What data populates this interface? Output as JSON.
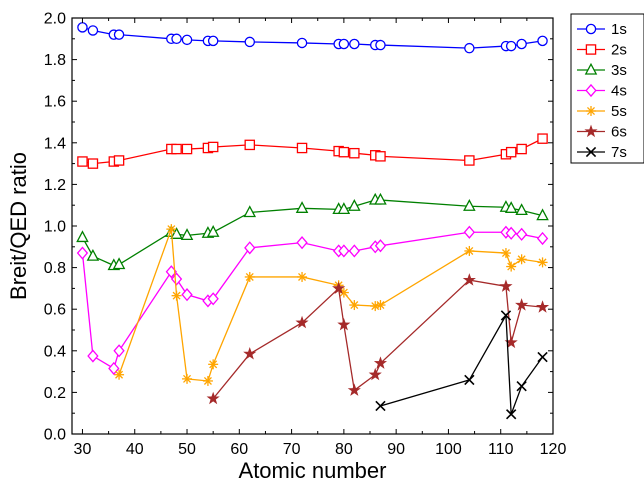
{
  "chart_data": {
    "type": "line",
    "xlabel": "Atomic number",
    "ylabel": "Breit/QED ratio",
    "xlim": [
      28,
      120
    ],
    "ylim": [
      0.0,
      2.0
    ],
    "xticks": [
      30,
      40,
      50,
      60,
      70,
      80,
      90,
      100,
      110,
      120
    ],
    "yticks": [
      "0.0",
      "0.2",
      "0.4",
      "0.6",
      "0.8",
      "1.0",
      "1.2",
      "1.4",
      "1.6",
      "1.8",
      "2.0"
    ],
    "legend_position": "outside-top-right",
    "grid": false,
    "series": [
      {
        "name": "1s",
        "color": "#0000ff",
        "marker": "circle",
        "x": [
          30,
          32,
          36,
          37,
          47,
          48,
          50,
          54,
          55,
          62,
          72,
          79,
          80,
          82,
          86,
          87,
          104,
          111,
          112,
          114,
          118
        ],
        "y": [
          1.955,
          1.94,
          1.92,
          1.92,
          1.9,
          1.9,
          1.895,
          1.89,
          1.89,
          1.885,
          1.88,
          1.875,
          1.875,
          1.875,
          1.87,
          1.87,
          1.855,
          1.865,
          1.865,
          1.875,
          1.89
        ]
      },
      {
        "name": "2s",
        "color": "#ff0000",
        "marker": "square",
        "x": [
          30,
          32,
          36,
          37,
          47,
          48,
          50,
          54,
          55,
          62,
          72,
          79,
          80,
          82,
          86,
          87,
          104,
          111,
          112,
          114,
          118
        ],
        "y": [
          1.31,
          1.3,
          1.31,
          1.315,
          1.37,
          1.37,
          1.37,
          1.375,
          1.38,
          1.39,
          1.375,
          1.36,
          1.355,
          1.35,
          1.34,
          1.335,
          1.315,
          1.345,
          1.355,
          1.37,
          1.42
        ]
      },
      {
        "name": "3s",
        "color": "#008000",
        "marker": "triangle",
        "x": [
          30,
          32,
          36,
          37,
          47,
          48,
          50,
          54,
          55,
          62,
          72,
          79,
          80,
          82,
          86,
          87,
          104,
          111,
          112,
          114,
          118
        ],
        "y": [
          0.945,
          0.855,
          0.81,
          0.815,
          0.97,
          0.96,
          0.955,
          0.965,
          0.97,
          1.065,
          1.085,
          1.08,
          1.08,
          1.095,
          1.125,
          1.125,
          1.095,
          1.09,
          1.085,
          1.075,
          1.05
        ]
      },
      {
        "name": "4s",
        "color": "#ff00ff",
        "marker": "diamond",
        "x": [
          30,
          32,
          36,
          37,
          47,
          48,
          50,
          54,
          55,
          62,
          72,
          79,
          80,
          82,
          86,
          87,
          104,
          111,
          112,
          114,
          118
        ],
        "y": [
          0.87,
          0.375,
          0.315,
          0.4,
          0.78,
          0.745,
          0.67,
          0.64,
          0.65,
          0.895,
          0.92,
          0.88,
          0.88,
          0.88,
          0.9,
          0.905,
          0.97,
          0.97,
          0.965,
          0.96,
          0.94
        ]
      },
      {
        "name": "5s",
        "color": "#ffa500",
        "marker": "asterisk",
        "x": [
          37,
          47,
          48,
          50,
          54,
          55,
          62,
          72,
          79,
          80,
          82,
          86,
          87,
          104,
          111,
          112,
          114,
          118
        ],
        "y": [
          0.285,
          0.985,
          0.665,
          0.265,
          0.255,
          0.335,
          0.755,
          0.755,
          0.715,
          0.68,
          0.62,
          0.615,
          0.62,
          0.88,
          0.87,
          0.805,
          0.84,
          0.825
        ]
      },
      {
        "name": "6s",
        "color": "#a52a2a",
        "marker": "star",
        "x": [
          55,
          62,
          72,
          79,
          80,
          82,
          86,
          87,
          104,
          111,
          112,
          114,
          118
        ],
        "y": [
          0.17,
          0.385,
          0.535,
          0.7,
          0.525,
          0.21,
          0.285,
          0.34,
          0.74,
          0.71,
          0.44,
          0.62,
          0.61
        ]
      },
      {
        "name": "7s",
        "color": "#000000",
        "marker": "x",
        "x": [
          87,
          104,
          111,
          112,
          114,
          118
        ],
        "y": [
          0.135,
          0.26,
          0.57,
          0.095,
          0.23,
          0.37
        ]
      }
    ]
  }
}
